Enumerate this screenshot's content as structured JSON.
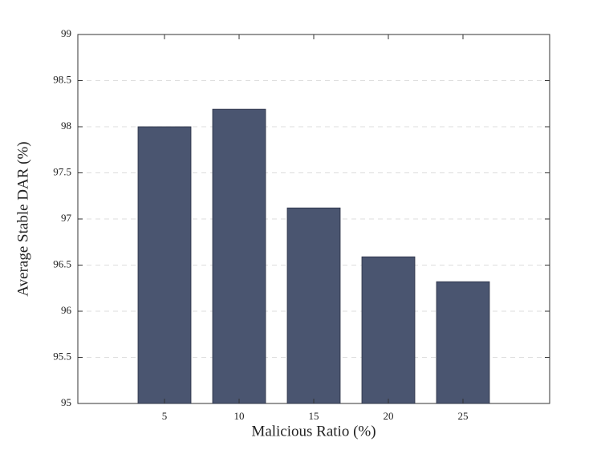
{
  "chart_data": {
    "type": "bar",
    "x_label": "Malicious Ratio (%)",
    "y_label": "Average Stable DAR (%)",
    "categories": [
      "5",
      "10",
      "15",
      "20",
      "25"
    ],
    "values": [
      98.0,
      98.19,
      97.12,
      96.59,
      96.32
    ],
    "color": "#4a5570",
    "ylim": [
      95,
      99
    ],
    "yticks": [
      95,
      95.5,
      96,
      96.5,
      97,
      97.5,
      98,
      98.5,
      99
    ],
    "grid": true
  }
}
